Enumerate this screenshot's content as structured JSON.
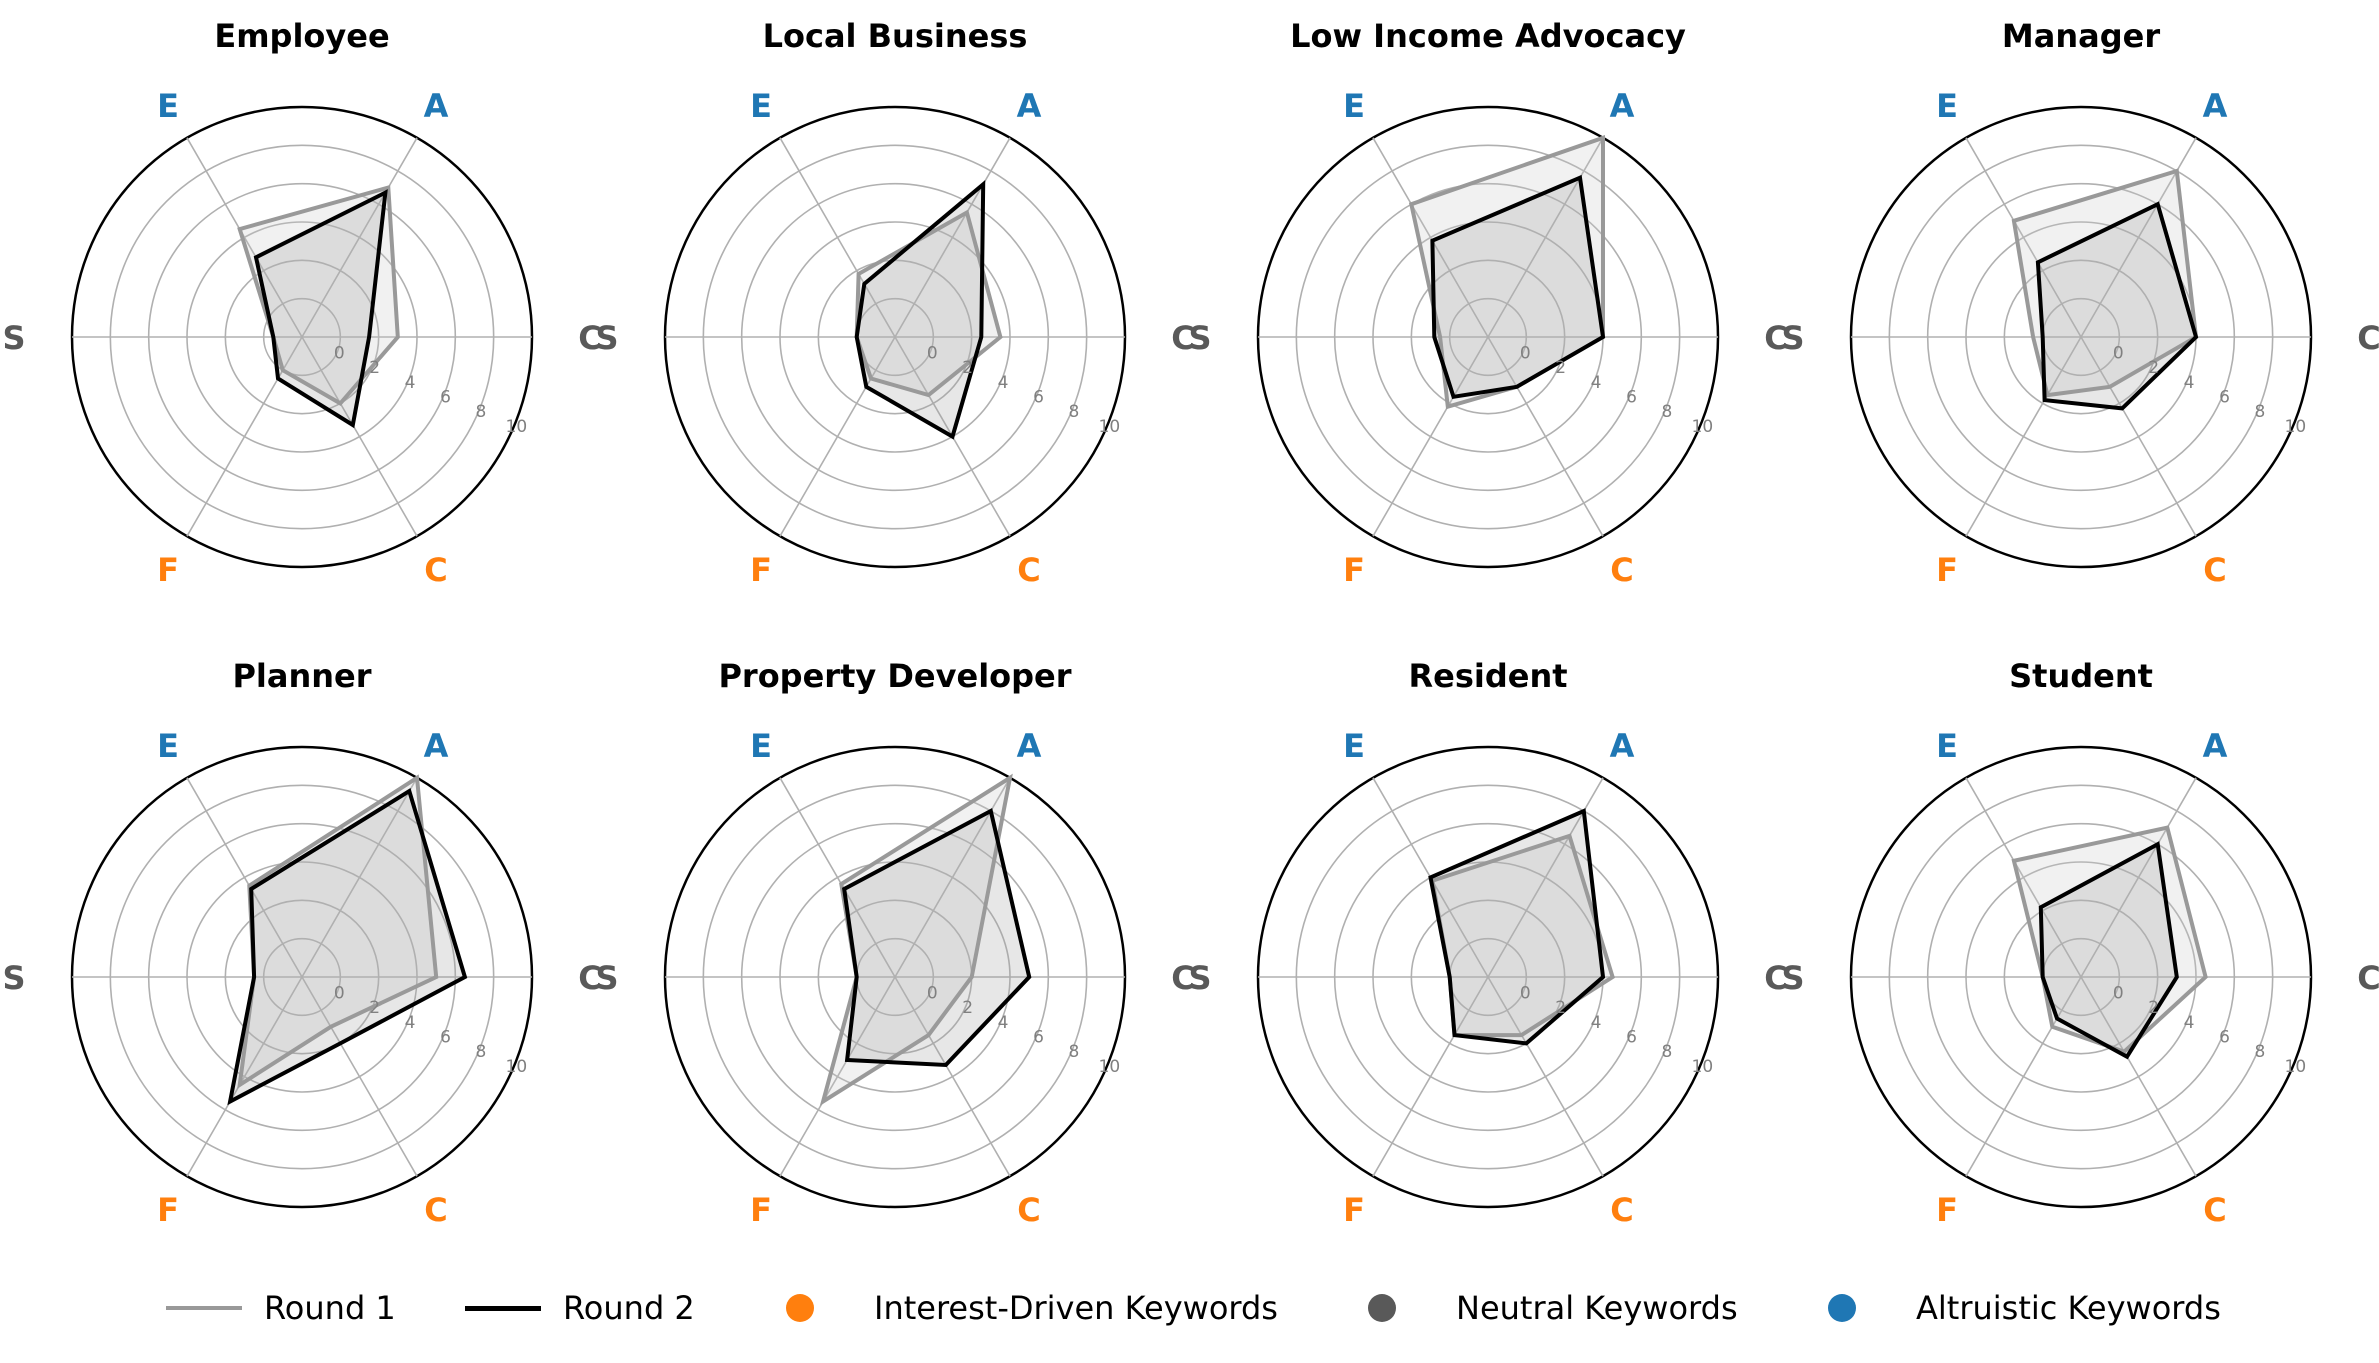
{
  "axis_labels": [
    "C",
    "A",
    "E",
    "S",
    "F",
    "C"
  ],
  "axis_colors": [
    "#595959",
    "#1f77b4",
    "#1f77b4",
    "#595959",
    "#ff7f0e",
    "#ff7f0e"
  ],
  "colors": {
    "round1": "#999999",
    "round2": "#000000",
    "interest": "#ff7f0e",
    "neutral": "#595959",
    "altruistic": "#1f77b4",
    "grid": "#b0b0b0",
    "tick": "#808080"
  },
  "radial_ticks": [
    "0",
    "2",
    "4",
    "6",
    "8",
    "10"
  ],
  "legend": {
    "round1": "Round 1",
    "round2": "Round 2",
    "interest": "Interest-Driven Keywords",
    "neutral": "Neutral Keywords",
    "altruistic": "Altruistic Keywords"
  },
  "chart_data": [
    {
      "type": "radar",
      "title": "Employee",
      "rlim": [
        -2,
        10
      ],
      "axes": [
        "C",
        "A",
        "E",
        "S",
        "F",
        "C"
      ],
      "series": [
        {
          "name": "Round 1",
          "values": [
            3,
            7,
            4.5,
            -0.5,
            0,
            2
          ]
        },
        {
          "name": "Round 2",
          "values": [
            1.5,
            6.7,
            2.8,
            -0.5,
            0.5,
            3.3
          ]
        }
      ]
    },
    {
      "type": "radar",
      "title": "Local Business",
      "rlim": [
        -2,
        10
      ],
      "axes": [
        "C",
        "A",
        "E",
        "S",
        "F",
        "C"
      ],
      "series": [
        {
          "name": "Round 1",
          "values": [
            3.5,
            5.5,
            1.8,
            0,
            0.5,
            1.5
          ]
        },
        {
          "name": "Round 2",
          "values": [
            2.5,
            7.2,
            1.2,
            0,
            1,
            4
          ]
        }
      ]
    },
    {
      "type": "radar",
      "title": "Low Income Advocacy",
      "rlim": [
        -2,
        10
      ],
      "axes": [
        "C",
        "A",
        "E",
        "S",
        "F",
        "C"
      ],
      "series": [
        {
          "name": "Round 1",
          "values": [
            4,
            10,
            6,
            0.5,
            2.2,
            1
          ]
        },
        {
          "name": "Round 2",
          "values": [
            4,
            7.6,
            3.8,
            0.8,
            1.6,
            1
          ]
        }
      ]
    },
    {
      "type": "radar",
      "title": "Manager",
      "rlim": [
        -2,
        10
      ],
      "axes": [
        "C",
        "A",
        "E",
        "S",
        "F",
        "C"
      ],
      "series": [
        {
          "name": "Round 1",
          "values": [
            4,
            8,
            5,
            0.5,
            1.5,
            1
          ]
        },
        {
          "name": "Round 2",
          "values": [
            4,
            6,
            2.5,
            0,
            1.8,
            2.3
          ]
        }
      ]
    },
    {
      "type": "radar",
      "title": "Planner",
      "rlim": [
        -2,
        10
      ],
      "axes": [
        "C",
        "A",
        "E",
        "S",
        "F",
        "C"
      ],
      "series": [
        {
          "name": "Round 1",
          "values": [
            5,
            10,
            3.5,
            0.5,
            4.5,
            1
          ]
        },
        {
          "name": "Round 2",
          "values": [
            6.5,
            9.2,
            3.3,
            0.5,
            5.5,
            2
          ]
        }
      ]
    },
    {
      "type": "radar",
      "title": "Property Developer",
      "rlim": [
        -2,
        10
      ],
      "axes": [
        "C",
        "A",
        "E",
        "S",
        "F",
        "C"
      ],
      "series": [
        {
          "name": "Round 1",
          "values": [
            2,
            10,
            3.6,
            0,
            5.5,
            1.5
          ]
        },
        {
          "name": "Round 2",
          "values": [
            5,
            8,
            3.3,
            0,
            3,
            3.3
          ]
        }
      ]
    },
    {
      "type": "radar",
      "title": "Resident",
      "rlim": [
        -2,
        10
      ],
      "axes": [
        "C",
        "A",
        "E",
        "S",
        "F",
        "C"
      ],
      "series": [
        {
          "name": "Round 1",
          "values": [
            4.5,
            6.5,
            3.8,
            0,
            1.5,
            1.5
          ]
        },
        {
          "name": "Round 2",
          "values": [
            4,
            8,
            4,
            0,
            1.5,
            2
          ]
        }
      ]
    },
    {
      "type": "radar",
      "title": "Student",
      "rlim": [
        -2,
        10
      ],
      "axes": [
        "C",
        "A",
        "E",
        "S",
        "F",
        "C"
      ],
      "series": [
        {
          "name": "Round 1",
          "values": [
            4.5,
            7,
            5,
            0,
            1,
            2.5
          ]
        },
        {
          "name": "Round 2",
          "values": [
            3,
            6,
            2.2,
            0,
            0.5,
            2.8
          ]
        }
      ]
    }
  ]
}
